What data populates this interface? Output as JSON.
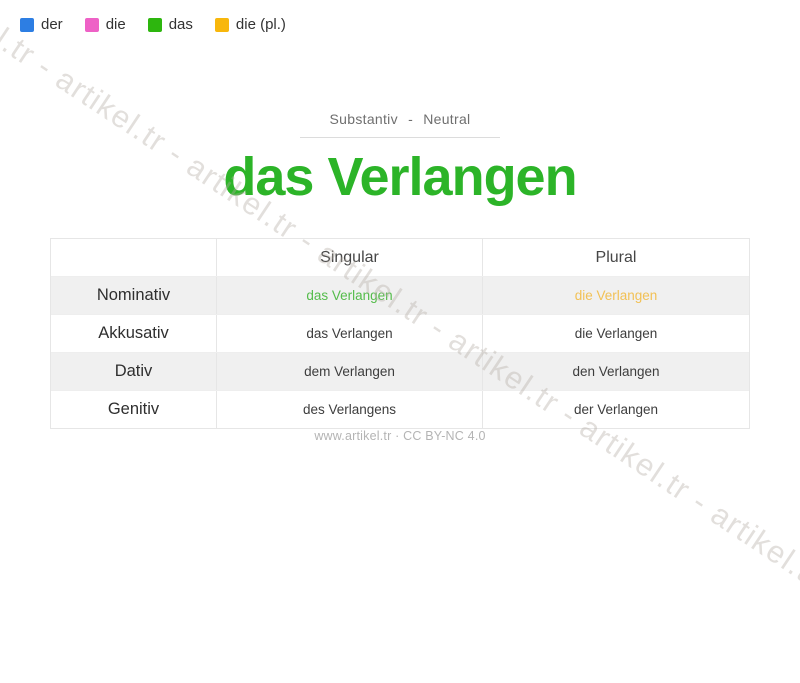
{
  "watermark": {
    "text": "artikel.tr - artikel.tr - artikel.tr - artikel.tr - artikel.tr - artikel.tr - artikel.tr - artikel.tr"
  },
  "legend": {
    "items": [
      {
        "label": "der",
        "color": "#2d7ee3"
      },
      {
        "label": "die",
        "color": "#ee61c6"
      },
      {
        "label": "das",
        "color": "#2db60e"
      },
      {
        "label": "die (pl.)",
        "color": "#f8b70c"
      }
    ]
  },
  "header": {
    "subtitle": "Substantiv - Neutral",
    "title": "das Verlangen",
    "title_color": "#2cb428"
  },
  "table": {
    "columns": {
      "case": "",
      "singular": "Singular",
      "plural": "Plural"
    },
    "rows": [
      {
        "case": "Nominativ",
        "singular": "das Verlangen",
        "plural": "die Verlangen",
        "singular_color": "#54bc4a",
        "plural_color": "#f2c155"
      },
      {
        "case": "Akkusativ",
        "singular": "das Verlangen",
        "plural": "die Verlangen",
        "singular_color": "#3d3d3d",
        "plural_color": "#3d3d3d"
      },
      {
        "case": "Dativ",
        "singular": "dem Verlangen",
        "plural": "den Verlangen",
        "singular_color": "#3d3d3d",
        "plural_color": "#3d3d3d"
      },
      {
        "case": "Genitiv",
        "singular": "des Verlangens",
        "plural": "der Verlangen",
        "singular_color": "#3d3d3d",
        "plural_color": "#3d3d3d"
      }
    ]
  },
  "footer": {
    "credit": "www.artikel.tr · CC BY-NC 4.0"
  }
}
